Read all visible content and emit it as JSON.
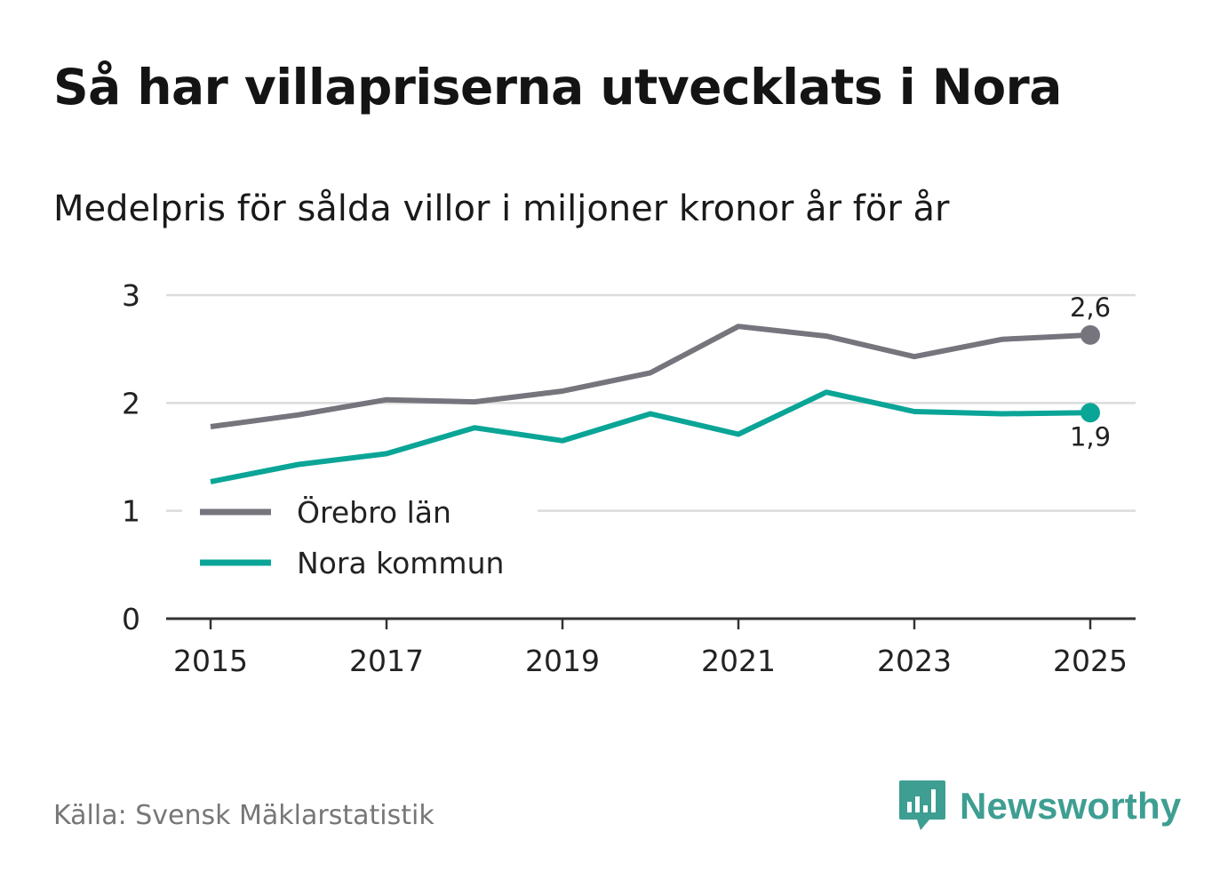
{
  "title": "Så har villapriserna utvecklats i Nora",
  "subtitle": "Medelpris för sålda villor i miljoner kronor år för år",
  "source": "Källa: Svensk Mäklarstatistik",
  "brand": {
    "name": "Newsworthy",
    "icon": "newsworthy-logo-icon",
    "color": "#3e9e92"
  },
  "chart_data": {
    "type": "line",
    "title": "Så har villapriserna utvecklats i Nora",
    "subtitle": "Medelpris för sålda villor i miljoner kronor år för år",
    "xlabel": "",
    "ylabel": "",
    "x": [
      2015,
      2016,
      2017,
      2018,
      2019,
      2020,
      2021,
      2022,
      2023,
      2024,
      2025
    ],
    "x_ticks": [
      "2015",
      "2017",
      "2019",
      "2021",
      "2023",
      "2025"
    ],
    "y_ticks": [
      "0",
      "1",
      "2",
      "3"
    ],
    "ylim": [
      0,
      3
    ],
    "xlim": [
      2015,
      2025
    ],
    "grid": true,
    "legend": "bottom-left",
    "series": [
      {
        "name": "Örebro län",
        "color": "#76757d",
        "values": [
          1.78,
          1.89,
          2.03,
          2.01,
          2.11,
          2.28,
          2.71,
          2.62,
          2.43,
          2.59,
          2.63
        ],
        "end_label": "2,6"
      },
      {
        "name": "Nora kommun",
        "color": "#0aa597",
        "values": [
          1.27,
          1.43,
          1.53,
          1.77,
          1.65,
          1.9,
          1.71,
          2.1,
          1.92,
          1.9,
          1.91
        ],
        "end_label": "1,9"
      }
    ]
  }
}
